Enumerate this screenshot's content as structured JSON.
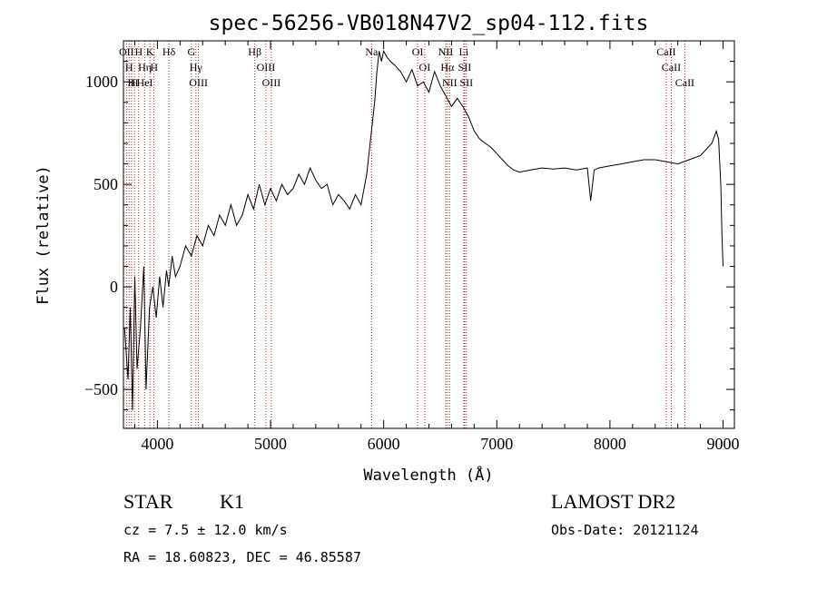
{
  "chart_data": {
    "type": "line",
    "title": "spec-56256-VB018N47V2_sp04-112.fits",
    "xlabel": "Wavelength (Å)",
    "ylabel": "Flux (relative)",
    "xlim": [
      3700,
      9100
    ],
    "ylim": [
      -690,
      1200
    ],
    "xticks": [
      4000,
      5000,
      6000,
      7000,
      8000,
      9000
    ],
    "yticks": [
      -500,
      0,
      500,
      1000
    ],
    "grid": false,
    "line_color": "#000000",
    "marker_color": "#b22222",
    "series": [
      {
        "x": [
          3710,
          3740,
          3760,
          3780,
          3800,
          3820,
          3850,
          3880,
          3900,
          3930,
          3960,
          3990,
          4020,
          4050,
          4080,
          4100,
          4130,
          4160,
          4200,
          4250,
          4300,
          4350,
          4400,
          4450,
          4500,
          4550,
          4600,
          4650,
          4700,
          4750,
          4800,
          4850,
          4900,
          4950,
          5000,
          5050,
          5100,
          5150,
          5200,
          5250,
          5300,
          5350,
          5400,
          5450,
          5500,
          5550,
          5600,
          5650,
          5700,
          5750,
          5800,
          5850,
          5880,
          5900,
          5920,
          5940,
          5960,
          5980,
          6000,
          6030,
          6060,
          6100,
          6150,
          6200,
          6250,
          6300,
          6350,
          6400,
          6450,
          6500,
          6550,
          6600,
          6650,
          6700,
          6750,
          6800,
          6850,
          6900,
          6950,
          7000,
          7050,
          7100,
          7150,
          7200,
          7300,
          7400,
          7500,
          7600,
          7700,
          7800,
          7830,
          7860,
          7900,
          8000,
          8100,
          8200,
          8300,
          8400,
          8500,
          8600,
          8700,
          8800,
          8900,
          8940,
          8960,
          8980,
          8990,
          9000
        ],
        "y": [
          -200,
          -450,
          -100,
          -600,
          50,
          -400,
          -200,
          100,
          -500,
          -100,
          0,
          -150,
          50,
          -100,
          80,
          0,
          150,
          50,
          100,
          200,
          150,
          250,
          200,
          300,
          250,
          350,
          300,
          400,
          300,
          350,
          450,
          380,
          500,
          400,
          480,
          420,
          500,
          450,
          480,
          550,
          500,
          580,
          520,
          480,
          500,
          400,
          450,
          420,
          380,
          450,
          400,
          550,
          700,
          800,
          900,
          1050,
          1150,
          1100,
          1150,
          1120,
          1100,
          1080,
          1050,
          1000,
          1060,
          980,
          1000,
          950,
          1050,
          980,
          930,
          880,
          920,
          880,
          830,
          760,
          720,
          700,
          680,
          650,
          620,
          590,
          570,
          560,
          570,
          580,
          575,
          580,
          570,
          580,
          420,
          570,
          580,
          590,
          600,
          610,
          620,
          620,
          610,
          600,
          620,
          640,
          700,
          760,
          720,
          500,
          250,
          100
        ]
      }
    ],
    "lines": [
      {
        "x": 3727,
        "label": "OII"
      },
      {
        "x": 3750,
        "label": "H"
      },
      {
        "x": 3771,
        "label": "H"
      },
      {
        "x": 3798,
        "label": "H"
      },
      {
        "x": 3835,
        "label": "H"
      },
      {
        "x": 3889,
        "label": "Hη"
      },
      {
        "x": 3889,
        "label": "HeI"
      },
      {
        "x": 3934,
        "label": "K"
      },
      {
        "x": 3970,
        "label": "H"
      },
      {
        "x": 4102,
        "label": "Hδ"
      },
      {
        "x": 4300,
        "label": "G"
      },
      {
        "x": 4340,
        "label": "Hγ"
      },
      {
        "x": 4363,
        "label": "OIII"
      },
      {
        "x": 4861,
        "label": "Hβ"
      },
      {
        "x": 4959,
        "label": "OIII"
      },
      {
        "x": 5007,
        "label": "OIII"
      },
      {
        "x": 5893,
        "label": "Na"
      },
      {
        "x": 6300,
        "label": "OI"
      },
      {
        "x": 6363,
        "label": "OI"
      },
      {
        "x": 6548,
        "label": "NII"
      },
      {
        "x": 6563,
        "label": "Hα"
      },
      {
        "x": 6583,
        "label": "NII"
      },
      {
        "x": 6708,
        "label": "Li"
      },
      {
        "x": 6716,
        "label": "SII"
      },
      {
        "x": 6731,
        "label": "SII"
      },
      {
        "x": 8498,
        "label": "CaII"
      },
      {
        "x": 8542,
        "label": "CaII"
      },
      {
        "x": 8662,
        "label": "CaII"
      }
    ]
  },
  "info": {
    "class": "STAR",
    "subclass": "K1",
    "survey": "LAMOST DR2",
    "cz": "cz = 7.5 ± 12.0 km/s",
    "obsdate": "Obs-Date: 20121124",
    "radec": "RA =  18.60823, DEC =  46.85587"
  }
}
